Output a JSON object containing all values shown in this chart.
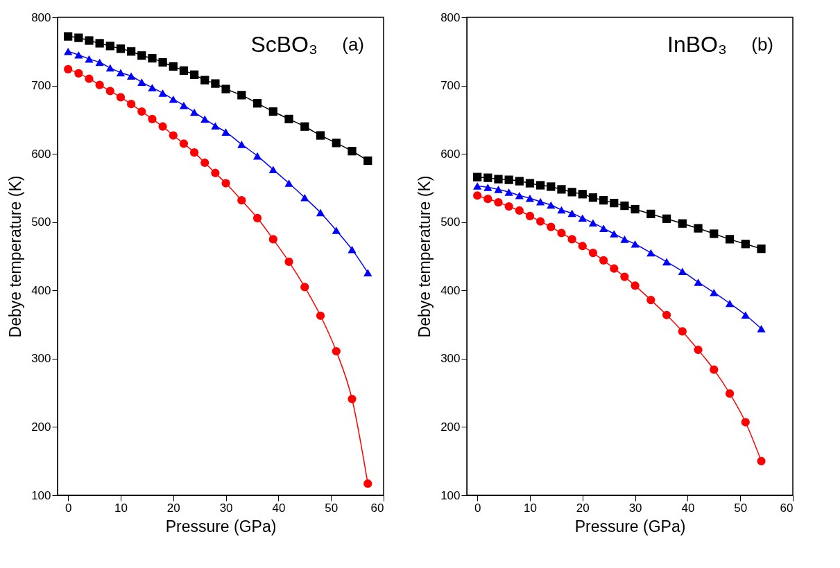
{
  "chart_data": [
    {
      "type": "line",
      "xlabel": "Pressure (GPa)",
      "ylabel": "Debye temperature (K)",
      "annotations": [
        "ScBO₃",
        "(a)"
      ],
      "x": [
        0,
        2,
        4,
        6,
        8,
        10,
        12,
        14,
        16,
        18,
        20,
        22,
        24,
        26,
        28,
        30,
        33,
        36,
        39,
        42,
        45,
        48,
        51,
        54,
        57
      ],
      "xlim": [
        -2,
        60
      ],
      "xticks": [
        0,
        10,
        20,
        30,
        40,
        50,
        60
      ],
      "ylim": [
        100,
        800
      ],
      "yticks": [
        100,
        200,
        300,
        400,
        500,
        600,
        700,
        800
      ],
      "grid": false,
      "line_style": "solid",
      "series": [
        {
          "color": "#000000",
          "marker": "square",
          "values": [
            772,
            770,
            766,
            762,
            758,
            754,
            750,
            744,
            740,
            734,
            728,
            722,
            716,
            708,
            703,
            695,
            686,
            674,
            662,
            651,
            640,
            627,
            616,
            604,
            590
          ]
        },
        {
          "color": "#0000ff",
          "marker": "triangle",
          "values": [
            750,
            745,
            739,
            734,
            726,
            719,
            714,
            705,
            697,
            689,
            680,
            671,
            661,
            651,
            641,
            632,
            614,
            597,
            577,
            557,
            536,
            514,
            488,
            460,
            426
          ]
        },
        {
          "color": "#ff0000",
          "marker": "circle",
          "values": [
            724,
            718,
            710,
            701,
            692,
            683,
            673,
            662,
            651,
            640,
            627,
            615,
            602,
            587,
            572,
            557,
            532,
            506,
            475,
            442,
            405,
            363,
            311,
            241,
            117
          ]
        }
      ]
    },
    {
      "type": "line",
      "xlabel": "Pressure (GPa)",
      "ylabel": "Debye temperature (K)",
      "annotations": [
        "InBO₃",
        "(b)"
      ],
      "x": [
        0,
        2,
        4,
        6,
        8,
        10,
        12,
        14,
        16,
        18,
        20,
        22,
        24,
        26,
        28,
        30,
        33,
        36,
        39,
        42,
        45,
        48,
        51,
        54
      ],
      "xlim": [
        -2,
        60
      ],
      "xticks": [
        0,
        10,
        20,
        30,
        40,
        50,
        60
      ],
      "ylim": [
        100,
        800
      ],
      "yticks": [
        100,
        200,
        300,
        400,
        500,
        600,
        700,
        800
      ],
      "grid": false,
      "line_style": "solid",
      "series": [
        {
          "color": "#000000",
          "marker": "square",
          "values": [
            566,
            565,
            563,
            562,
            560,
            557,
            554,
            552,
            548,
            544,
            541,
            536,
            532,
            528,
            524,
            519,
            512,
            505,
            498,
            491,
            483,
            475,
            468,
            461
          ]
        },
        {
          "color": "#0000ff",
          "marker": "triangle",
          "values": [
            553,
            551,
            548,
            544,
            539,
            535,
            530,
            525,
            518,
            513,
            506,
            499,
            491,
            483,
            475,
            468,
            455,
            442,
            428,
            412,
            397,
            381,
            364,
            344
          ]
        },
        {
          "color": "#ff0000",
          "marker": "circle",
          "values": [
            539,
            534,
            529,
            523,
            517,
            509,
            501,
            493,
            484,
            475,
            465,
            455,
            444,
            432,
            420,
            407,
            386,
            364,
            340,
            313,
            284,
            249,
            207,
            150
          ]
        }
      ]
    }
  ]
}
